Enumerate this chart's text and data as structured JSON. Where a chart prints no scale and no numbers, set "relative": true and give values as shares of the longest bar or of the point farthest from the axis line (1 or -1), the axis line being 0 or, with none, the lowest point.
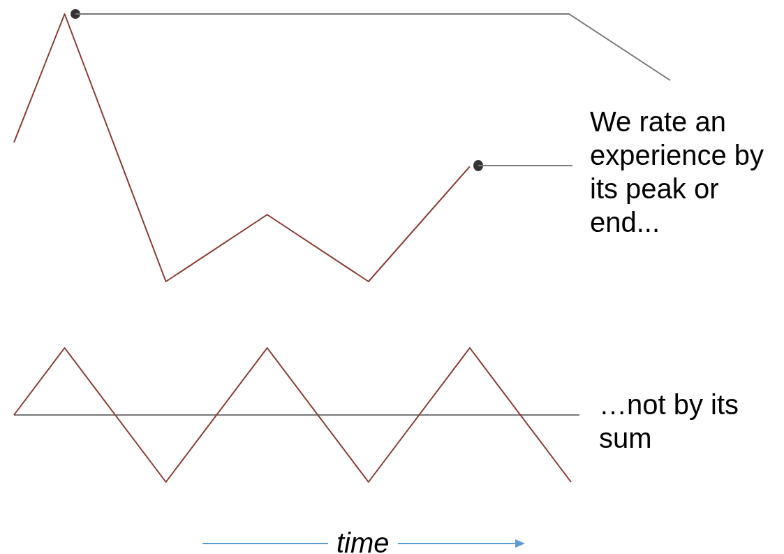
{
  "chart_data": [
    {
      "type": "line",
      "relative": true,
      "categories": [
        null,
        null,
        null,
        null,
        null,
        null,
        null,
        null,
        null,
        null,
        null,
        null
      ],
      "series": [
        {
          "color": "#8b3a2f",
          "values": [
            0.52,
            1,
            null,
            0,
            null,
            0.25,
            null,
            0,
            null,
            0.43,
            null,
            null
          ]
        }
      ],
      "annotations": [
        "We rate an experience by its peak or end..."
      ]
    },
    {
      "type": "line",
      "relative": true,
      "categories": [
        null,
        null,
        null,
        null,
        null,
        null,
        null,
        null,
        null,
        null,
        null,
        null
      ],
      "series": [
        {
          "color": "#8b3a2f",
          "values": [
            0,
            1,
            null,
            -1,
            null,
            1,
            null,
            -1,
            null,
            1,
            null,
            -1
          ]
        }
      ],
      "xlabel": "time",
      "annotations": [
        "…not by its sum"
      ]
    }
  ]
}
